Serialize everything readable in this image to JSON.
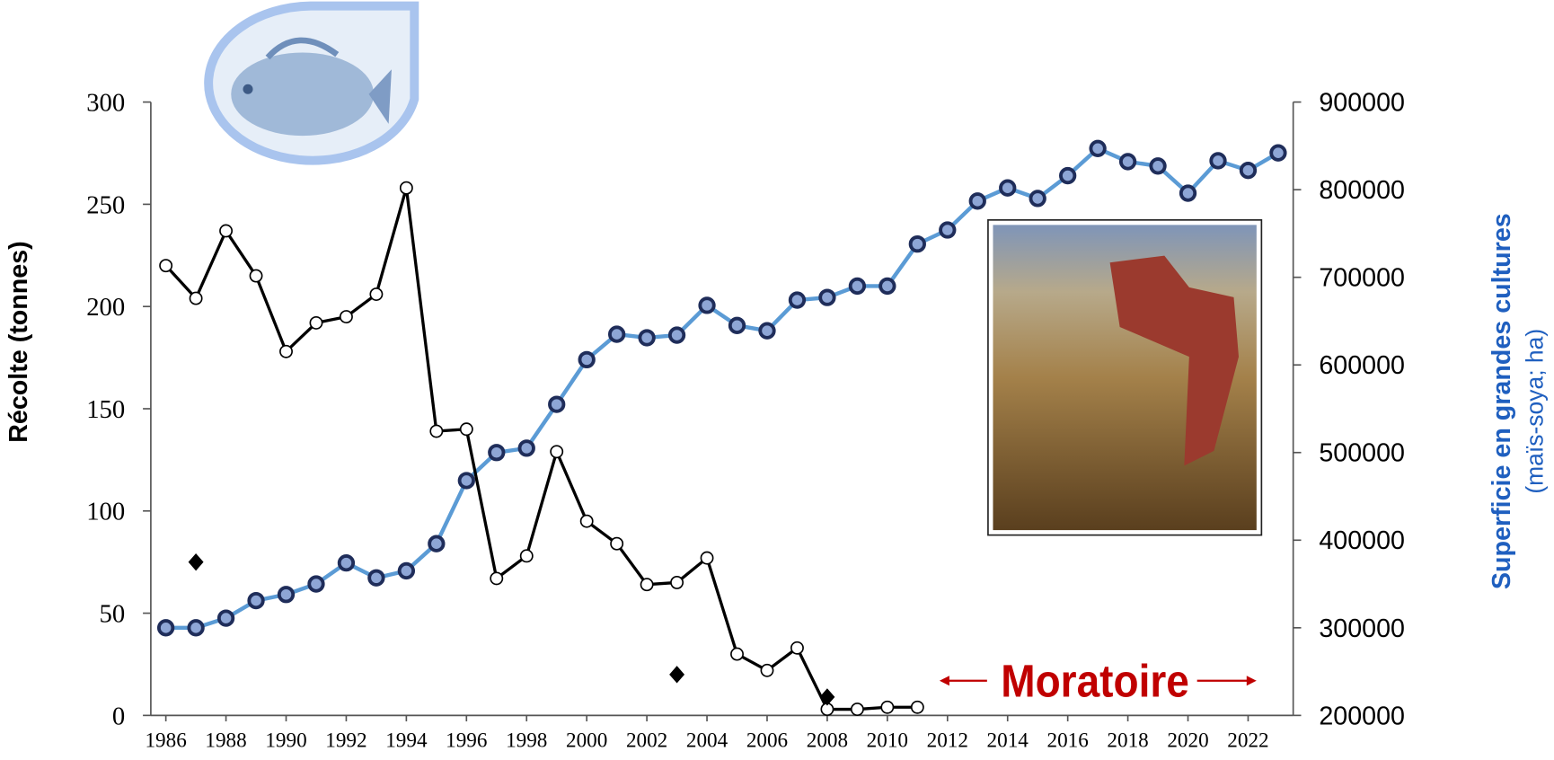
{
  "chart_data": {
    "type": "line",
    "y_label": "Récolte (tonnes)",
    "y2_label": "Superficie en grandes cultures",
    "y2_sublabel": "(maïs-soya; ha)",
    "annotation": "Moratoire",
    "annotation_color": "#c00000",
    "x": [
      1986,
      1987,
      1988,
      1989,
      1990,
      1991,
      1992,
      1993,
      1994,
      1995,
      1996,
      1997,
      1998,
      1999,
      2000,
      2001,
      2002,
      2003,
      2004,
      2005,
      2006,
      2007,
      2008,
      2009,
      2010,
      2011,
      2012,
      2013,
      2014,
      2015,
      2016,
      2017,
      2018,
      2019,
      2020,
      2021,
      2022,
      2023
    ],
    "xlim": [
      1985.5,
      2023.5
    ],
    "xticks": [
      1986,
      1988,
      1990,
      1992,
      1994,
      1996,
      1998,
      2000,
      2002,
      2004,
      2006,
      2008,
      2010,
      2012,
      2014,
      2016,
      2018,
      2020,
      2022
    ],
    "ylim": [
      0,
      300
    ],
    "yticks": [
      0,
      50,
      100,
      150,
      200,
      250,
      300
    ],
    "y2lim": [
      200000,
      900000
    ],
    "y2ticks": [
      200000,
      300000,
      400000,
      500000,
      600000,
      700000,
      800000,
      900000
    ],
    "series": [
      {
        "axis": "y2",
        "color": "#5b9bd5",
        "marker": "circle",
        "marker_fill": "#8ea6d6",
        "marker_stroke": "#1f2d5a",
        "line": true,
        "values": [
          300000,
          300000,
          311000,
          331000,
          338000,
          350000,
          374000,
          357000,
          365000,
          396000,
          468000,
          500000,
          505000,
          555000,
          606000,
          635000,
          631000,
          634000,
          668000,
          645000,
          639000,
          674000,
          677000,
          690000,
          690000,
          738000,
          754000,
          787000,
          802000,
          790000,
          816000,
          847000,
          832000,
          827000,
          796000,
          833000,
          822000,
          842000
        ]
      },
      {
        "axis": "y",
        "color": "#000000",
        "marker": "circle",
        "marker_fill": "#ffffff",
        "marker_stroke": "#000000",
        "line": true,
        "values": [
          220,
          204,
          237,
          215,
          178,
          192,
          195,
          206,
          258,
          139,
          140,
          67,
          78,
          129,
          95,
          84,
          64,
          65,
          77,
          30,
          22,
          33,
          3,
          3,
          4,
          4,
          null,
          null,
          null,
          null,
          null,
          null,
          null,
          null,
          null,
          null,
          null,
          null
        ]
      },
      {
        "axis": "y",
        "color": "#000000",
        "marker": "diamond",
        "marker_fill": "#000000",
        "marker_stroke": "#000000",
        "line": false,
        "values": [
          null,
          75,
          null,
          null,
          null,
          null,
          null,
          null,
          null,
          null,
          null,
          null,
          null,
          null,
          null,
          null,
          null,
          20,
          null,
          null,
          null,
          null,
          9,
          null,
          null,
          null,
          null,
          null,
          null,
          null,
          null,
          null,
          null,
          null,
          null,
          null,
          null,
          null
        ]
      }
    ]
  }
}
